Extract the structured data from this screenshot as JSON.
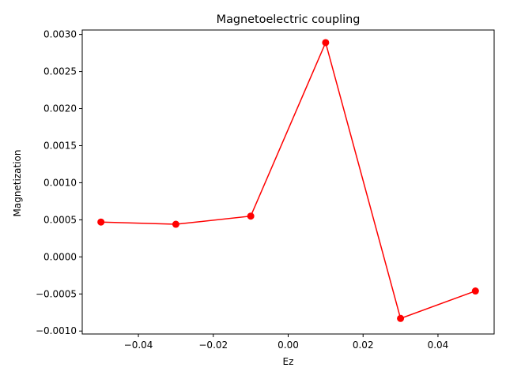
{
  "chart_data": {
    "type": "line",
    "title": "Magnetoelectric coupling",
    "xlabel": "Ez",
    "ylabel": "Magnetization",
    "xlim": [
      -0.055,
      0.055
    ],
    "ylim": [
      -0.00104,
      0.00306
    ],
    "xticks": [
      -0.04,
      -0.02,
      0.0,
      0.02,
      0.04
    ],
    "xtick_labels": [
      "−0.04",
      "−0.02",
      "0.00",
      "0.02",
      "0.04"
    ],
    "yticks": [
      -0.001,
      -0.0005,
      0.0,
      0.0005,
      0.001,
      0.0015,
      0.002,
      0.0025,
      0.003
    ],
    "ytick_labels": [
      "−0.0010",
      "−0.0005",
      "0.0000",
      "0.0005",
      "0.0010",
      "0.0015",
      "0.0020",
      "0.0025",
      "0.0030"
    ],
    "grid": false,
    "series": [
      {
        "color": "#ff0000",
        "marker": "circle",
        "x": [
          -0.05,
          -0.03,
          -0.01,
          0.01,
          0.03,
          0.05
        ],
        "y": [
          0.00047,
          0.00044,
          0.00055,
          0.00289,
          -0.00083,
          -0.00046
        ]
      }
    ]
  }
}
